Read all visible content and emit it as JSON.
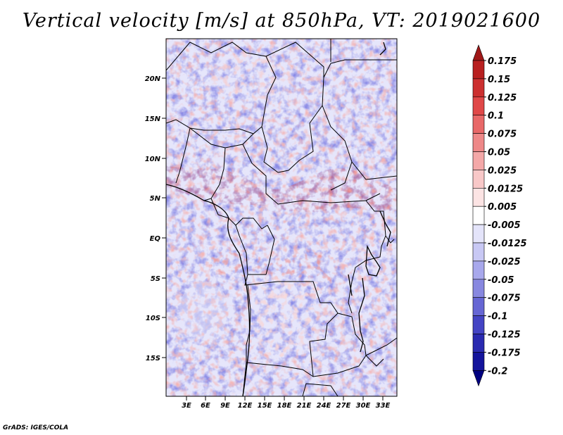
{
  "title": "Vertical velocity [m/s] at 850hPa, VT: 2019021600",
  "credit": "GrADS: IGES/COLA",
  "lat_labels": [
    "20N",
    "15N",
    "10N",
    "5N",
    "EQ",
    "5S",
    "10S",
    "15S"
  ],
  "lon_labels": [
    "3E",
    "6E",
    "9E",
    "12E",
    "15E",
    "18E",
    "21E",
    "24E",
    "27E",
    "30E",
    "33E"
  ],
  "colorbar": {
    "labels": [
      "0.175",
      "0.15",
      "0.125",
      "0.1",
      "0.075",
      "0.05",
      "0.025",
      "0.0125",
      "0.005",
      "-0.005",
      "-0.0125",
      "-0.025",
      "-0.05",
      "-0.075",
      "-0.1",
      "-0.125",
      "-0.175",
      "-0.2"
    ],
    "colors": [
      "#a01818",
      "#b82020",
      "#cc3030",
      "#e04848",
      "#e86868",
      "#ee8888",
      "#f4a8a8",
      "#f8c8c8",
      "#fce4e4",
      "#ffffff",
      "#e4e4fa",
      "#c8c8f4",
      "#a8a8ec",
      "#8888e0",
      "#6666d4",
      "#4444c4",
      "#2a2ab0",
      "#14149c",
      "#000080"
    ]
  }
}
